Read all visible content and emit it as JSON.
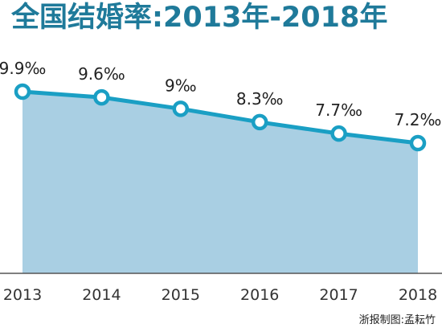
{
  "chart_data": {
    "type": "area",
    "title": "全国结婚率:2013年-2018年",
    "x": [
      "2013",
      "2014",
      "2015",
      "2016",
      "2017",
      "2018"
    ],
    "values": [
      9.9,
      9.6,
      9.0,
      8.3,
      7.7,
      7.2
    ],
    "data_labels": [
      "9.9‰",
      "9.6‰",
      "9‰",
      "8.3‰",
      "7.7‰",
      "7.2‰"
    ],
    "unit": "‰",
    "xlabel": "",
    "ylabel": "",
    "ylim": [
      0,
      10.9
    ],
    "grid": false,
    "legend": "none",
    "colors": {
      "line": "#1a9fc4",
      "fill": "#a9cfe3",
      "marker_fill": "#ffffff",
      "title": "#1f7a9a"
    }
  },
  "source_credit": "浙报制图:孟耘竹"
}
